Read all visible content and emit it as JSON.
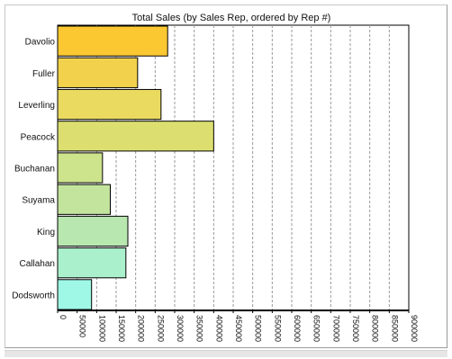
{
  "chart_data": {
    "type": "bar",
    "orientation": "horizontal",
    "title": "Total Sales (by Sales Rep, ordered by Rep #)",
    "xlabel": "",
    "ylabel": "",
    "categories": [
      "Davolio",
      "Fuller",
      "Leverling",
      "Peacock",
      "Buchanan",
      "Suyama",
      "King",
      "Callahan",
      "Dodsworth"
    ],
    "values": [
      282000,
      205000,
      265000,
      400000,
      115000,
      135000,
      180000,
      175000,
      87000
    ],
    "xlim": [
      0,
      900000
    ],
    "ticks": [
      0,
      50000,
      100000,
      150000,
      200000,
      250000,
      300000,
      350000,
      400000,
      450000,
      500000,
      550000,
      600000,
      650000,
      700000,
      750000,
      800000,
      850000,
      900000
    ],
    "tick_labels": [
      "0",
      "50000",
      "100000",
      "150000",
      "200000",
      "250000",
      "300000",
      "350000",
      "400000",
      "450000",
      "500000",
      "550000",
      "600000",
      "650000",
      "700000",
      "750000",
      "800000",
      "850000",
      "900000"
    ],
    "grid": "vertical dashed",
    "legend": "none",
    "bar_colors": [
      "#fcc832",
      "#f2d24c",
      "#eada60",
      "#dcdf70",
      "#cde38c",
      "#c3e49d",
      "#b9e7b0",
      "#aaf0cc",
      "#9ff8e6"
    ],
    "axis_color": "#000000",
    "grid_color": "#9a9a9a"
  }
}
